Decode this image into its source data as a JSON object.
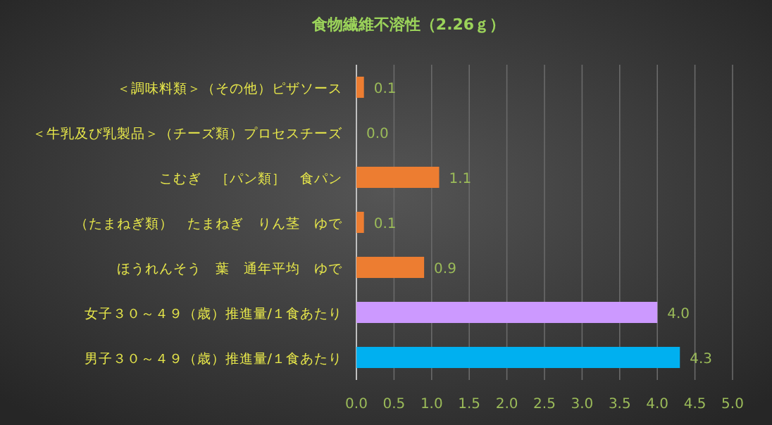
{
  "chart_data": {
    "type": "bar",
    "orientation": "horizontal",
    "title": "食物繊維不溶性（2.26ｇ）",
    "categories": [
      "＜調味料類＞（その他）ピザソース",
      "＜牛乳及び乳製品＞（チーズ類）プロセスチーズ",
      "こむぎ　［パン類］　食パン",
      "（たまねぎ類）　たまねぎ　りん茎　ゆで",
      "ほうれんそう　葉　通年平均　ゆで",
      "女子３０～４９（歳）推進量/１食あたり",
      "男子３０～４９（歳）推進量/１食あたり"
    ],
    "values": [
      0.1,
      0.0,
      1.1,
      0.1,
      0.9,
      4.0,
      4.3
    ],
    "value_labels": [
      "0.1",
      "0.0",
      "1.1",
      "0.1",
      "0.9",
      "4.0",
      "4.3"
    ],
    "colors": [
      "#ed7d31",
      "#ed7d31",
      "#ed7d31",
      "#ed7d31",
      "#ed7d31",
      "#cc99ff",
      "#00b0f0"
    ],
    "xlim": [
      0,
      5
    ],
    "xticks": [
      {
        "value": 0,
        "label": "0.0"
      },
      {
        "value": 0.5,
        "label": "0.5"
      },
      {
        "value": 1,
        "label": "1.0"
      },
      {
        "value": 1.5,
        "label": "1.5"
      },
      {
        "value": 2,
        "label": "2.0"
      },
      {
        "value": 2.5,
        "label": "2.5"
      },
      {
        "value": 3,
        "label": "3.0"
      },
      {
        "value": 3.5,
        "label": "3.5"
      },
      {
        "value": 4,
        "label": "4.0"
      },
      {
        "value": 4.5,
        "label": "4.5"
      },
      {
        "value": 5,
        "label": "5.0"
      }
    ],
    "grid": "x"
  }
}
